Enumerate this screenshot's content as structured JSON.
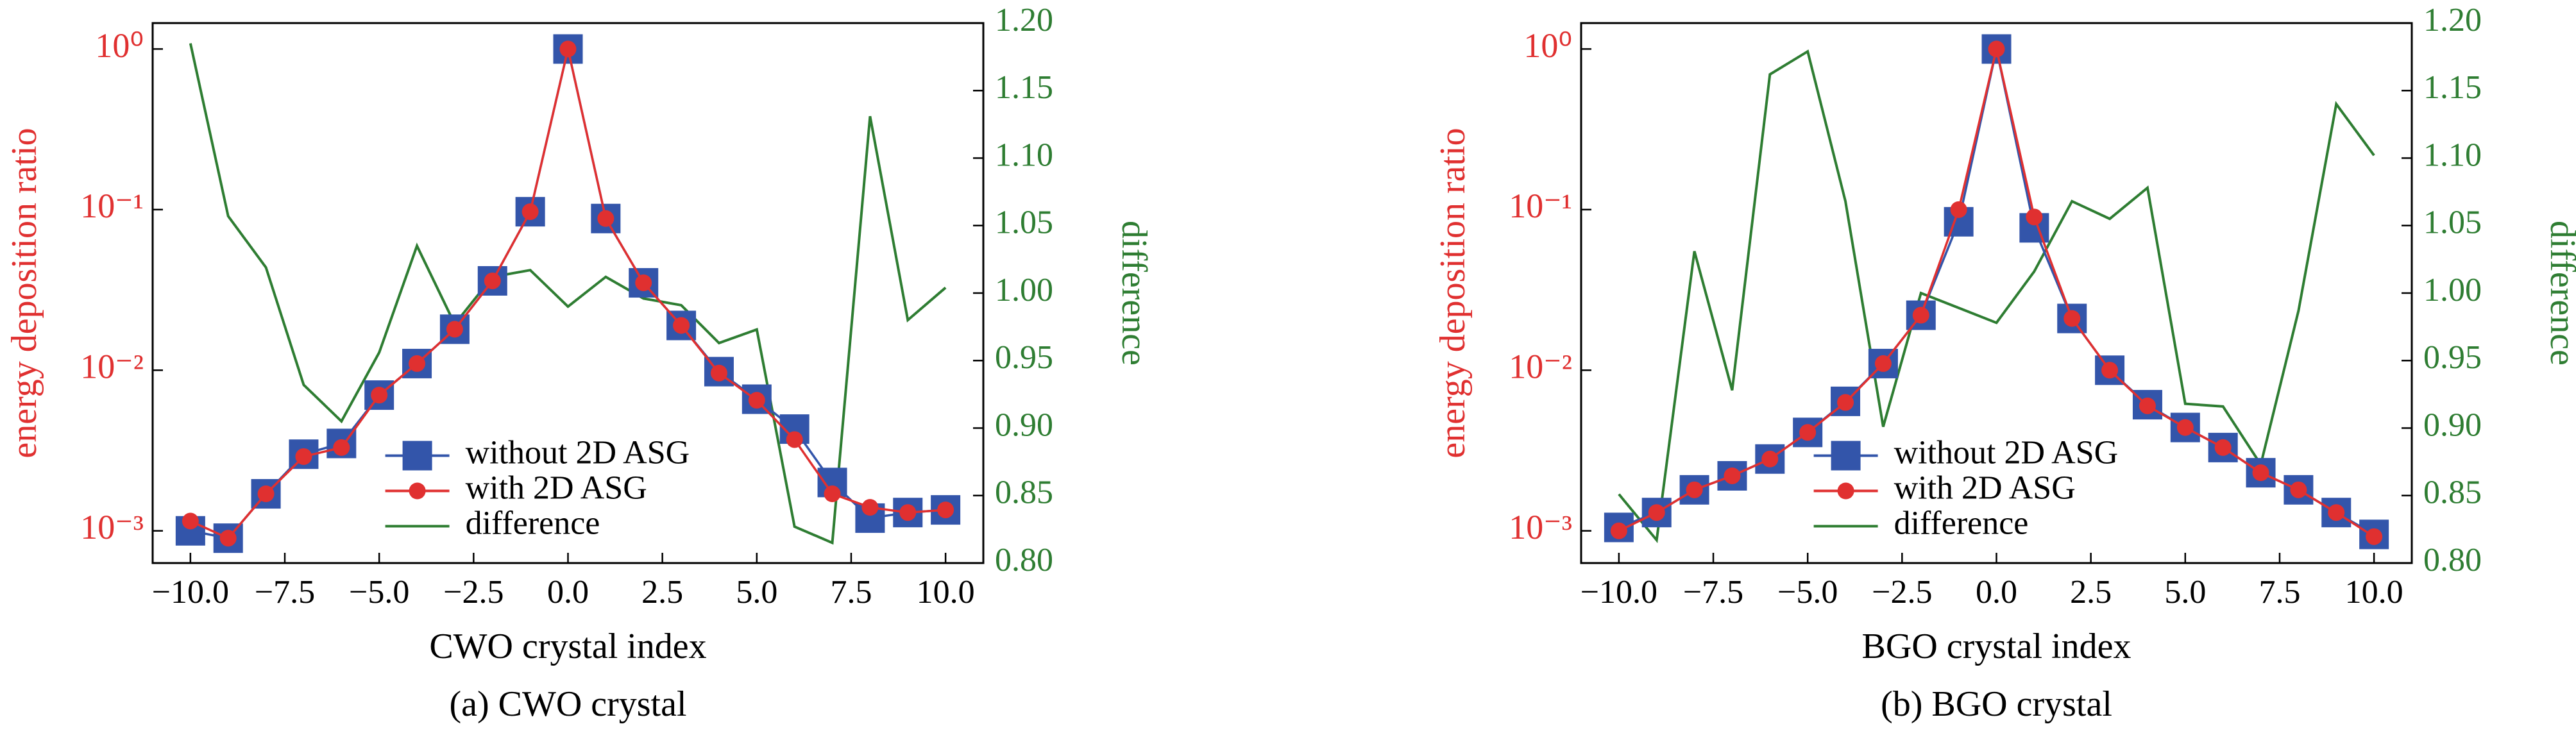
{
  "chart_data": [
    {
      "type": "line",
      "xlabel": "CWO crystal index",
      "ylabel": "energy deposition ratio",
      "y2label": "difference",
      "caption": "(a) CWO crystal",
      "log_y": true,
      "legend": "lower center",
      "ylabel_color": "#e03030",
      "y2label_color": "#2e7d32",
      "x": [
        -10,
        -9,
        -8,
        -7,
        -6,
        -5,
        -4,
        -3,
        -2,
        -1,
        0,
        1,
        2,
        3,
        4,
        5,
        6,
        7,
        8,
        9,
        10
      ],
      "xlim": [
        -11,
        11
      ],
      "xticks": [
        {
          "value": -10,
          "label": "−10.0"
        },
        {
          "value": -7.5,
          "label": "−7.5"
        },
        {
          "value": -5,
          "label": "−5.0"
        },
        {
          "value": -2.5,
          "label": "−2.5"
        },
        {
          "value": 0,
          "label": "0.0"
        },
        {
          "value": 2.5,
          "label": "2.5"
        },
        {
          "value": 5,
          "label": "5.0"
        },
        {
          "value": 7.5,
          "label": "7.5"
        },
        {
          "value": 10,
          "label": "10.0"
        }
      ],
      "ylim": [
        0.00063,
        1.45
      ],
      "yticks": [
        {
          "value": 0.001,
          "label": "10⁻³"
        },
        {
          "value": 0.01,
          "label": "10⁻²"
        },
        {
          "value": 0.1,
          "label": "10⁻¹"
        },
        {
          "value": 1,
          "label": "10⁰"
        }
      ],
      "y2lim": [
        0.8,
        1.2
      ],
      "y2ticks": [
        {
          "value": 0.8,
          "label": "0.80"
        },
        {
          "value": 0.85,
          "label": "0.85"
        },
        {
          "value": 0.9,
          "label": "0.90"
        },
        {
          "value": 0.95,
          "label": "0.95"
        },
        {
          "value": 1.0,
          "label": "1.00"
        },
        {
          "value": 1.05,
          "label": "1.05"
        },
        {
          "value": 1.1,
          "label": "1.10"
        },
        {
          "value": 1.15,
          "label": "1.15"
        },
        {
          "value": 1.2,
          "label": "1.20"
        }
      ],
      "series": [
        {
          "name": "difference",
          "color": "#2e7d32",
          "marker": "none",
          "axis": "y2",
          "values": [
            1.185,
            1.057,
            1.019,
            0.932,
            0.905,
            0.956,
            1.035,
            0.977,
            1.012,
            1.017,
            0.99,
            1.012,
            0.996,
            0.991,
            0.963,
            0.973,
            0.827,
            0.815,
            1.131,
            0.98,
            1.004
          ]
        },
        {
          "name": "without 2D ASG",
          "color": "#3355aa",
          "marker": "square",
          "values": [
            0.001,
            0.0009,
            0.0017,
            0.003,
            0.0035,
            0.007,
            0.011,
            0.018,
            0.036,
            0.097,
            1,
            0.088,
            0.035,
            0.019,
            0.0098,
            0.0066,
            0.0043,
            0.002,
            0.0012,
            0.0013,
            0.00135
          ]
        },
        {
          "name": "with 2D ASG",
          "color": "#e03030",
          "marker": "circle",
          "values": [
            0.00115,
            0.0009,
            0.0017,
            0.0029,
            0.0033,
            0.007,
            0.011,
            0.018,
            0.036,
            0.097,
            1,
            0.088,
            0.035,
            0.019,
            0.0096,
            0.0065,
            0.0037,
            0.0017,
            0.0014,
            0.0013,
            0.00135
          ]
        }
      ]
    },
    {
      "type": "line",
      "xlabel": "BGO crystal index",
      "ylabel": "energy deposition ratio",
      "y2label": "difference",
      "caption": "(b) BGO crystal",
      "log_y": true,
      "legend": "lower center",
      "ylabel_color": "#e03030",
      "y2label_color": "#2e7d32",
      "x": [
        -10,
        -9,
        -8,
        -7,
        -6,
        -5,
        -4,
        -3,
        -2,
        -1,
        0,
        1,
        2,
        3,
        4,
        5,
        6,
        7,
        8,
        9,
        10
      ],
      "xlim": [
        -11,
        11
      ],
      "xticks": [
        {
          "value": -10,
          "label": "−10.0"
        },
        {
          "value": -7.5,
          "label": "−7.5"
        },
        {
          "value": -5,
          "label": "−5.0"
        },
        {
          "value": -2.5,
          "label": "−2.5"
        },
        {
          "value": 0,
          "label": "0.0"
        },
        {
          "value": 2.5,
          "label": "2.5"
        },
        {
          "value": 5,
          "label": "5.0"
        },
        {
          "value": 7.5,
          "label": "7.5"
        },
        {
          "value": 10,
          "label": "10.0"
        }
      ],
      "ylim": [
        0.00063,
        1.45
      ],
      "yticks": [
        {
          "value": 0.001,
          "label": "10⁻³"
        },
        {
          "value": 0.01,
          "label": "10⁻²"
        },
        {
          "value": 0.1,
          "label": "10⁻¹"
        },
        {
          "value": 1,
          "label": "10⁰"
        }
      ],
      "y2lim": [
        0.8,
        1.2
      ],
      "y2ticks": [
        {
          "value": 0.8,
          "label": "0.80"
        },
        {
          "value": 0.85,
          "label": "0.85"
        },
        {
          "value": 0.9,
          "label": "0.90"
        },
        {
          "value": 0.95,
          "label": "0.95"
        },
        {
          "value": 1.0,
          "label": "1.00"
        },
        {
          "value": 1.05,
          "label": "1.05"
        },
        {
          "value": 1.1,
          "label": "1.10"
        },
        {
          "value": 1.15,
          "label": "1.15"
        },
        {
          "value": 1.2,
          "label": "1.20"
        }
      ],
      "series": [
        {
          "name": "difference",
          "color": "#2e7d32",
          "marker": "none",
          "axis": "y2",
          "values": [
            0.851,
            0.817,
            1.031,
            0.928,
            1.162,
            1.179,
            1.068,
            0.901,
            1.0,
            0.989,
            0.978,
            1.016,
            1.068,
            1.055,
            1.078,
            0.918,
            0.916,
            0.873,
            0.987,
            1.14,
            1.102
          ]
        },
        {
          "name": "without 2D ASG",
          "color": "#3355aa",
          "marker": "square",
          "values": [
            0.00105,
            0.0013,
            0.0018,
            0.0022,
            0.0028,
            0.0041,
            0.0064,
            0.011,
            0.022,
            0.084,
            1,
            0.077,
            0.021,
            0.01,
            0.0061,
            0.0044,
            0.0033,
            0.0023,
            0.0018,
            0.0013,
            0.00095
          ]
        },
        {
          "name": "with 2D ASG",
          "color": "#e03030",
          "marker": "circle",
          "values": [
            0.001,
            0.0013,
            0.0018,
            0.0022,
            0.0028,
            0.0041,
            0.0063,
            0.011,
            0.022,
            0.1,
            1,
            0.09,
            0.021,
            0.01,
            0.006,
            0.0044,
            0.0033,
            0.0023,
            0.0018,
            0.0013,
            0.00092
          ]
        }
      ]
    }
  ]
}
